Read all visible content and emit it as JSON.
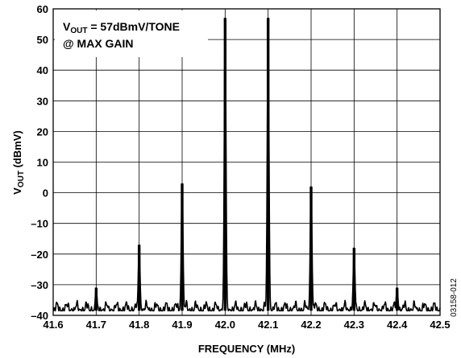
{
  "chart_data": {
    "type": "line",
    "title": "",
    "xlabel": "FREQUENCY (MHz)",
    "ylabel": {
      "main": "V",
      "sub": "OUT",
      "rest": " (dBmV)"
    },
    "xlim": [
      41.6,
      42.5
    ],
    "ylim": [
      -40,
      60
    ],
    "x_ticks": [
      "41.6",
      "41.7",
      "41.8",
      "41.9",
      "42.0",
      "42.1",
      "42.2",
      "42.3",
      "42.4",
      "42.5"
    ],
    "y_ticks": [
      "60",
      "50",
      "40",
      "30",
      "20",
      "10",
      "0",
      "–10",
      "–20",
      "–30",
      "–40"
    ],
    "grid": true,
    "line_color": "#000000",
    "noise_floor": -38.5,
    "peaks": [
      {
        "x": 41.7,
        "y": -31
      },
      {
        "x": 41.8,
        "y": -17
      },
      {
        "x": 41.9,
        "y": 3
      },
      {
        "x": 42.0,
        "y": 57
      },
      {
        "x": 42.1,
        "y": 57
      },
      {
        "x": 42.2,
        "y": 2
      },
      {
        "x": 42.3,
        "y": -18
      },
      {
        "x": 42.4,
        "y": -31
      }
    ],
    "annotation": {
      "line1_main": "V",
      "line1_sub": "OUT",
      "line1_rest": " = 57dBmV/TONE",
      "line2": "@ MAX GAIN"
    },
    "figure_id": "03158-012"
  }
}
